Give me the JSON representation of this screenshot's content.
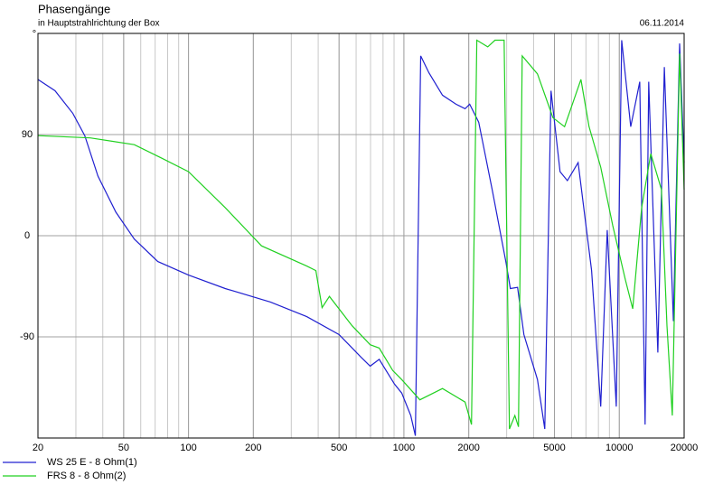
{
  "chart_data": {
    "type": "line",
    "title": "Phasengänge",
    "subtitle": "in Hauptstrahlrichtung der Box",
    "date": "06.11.2014",
    "ylabel": "°",
    "xscale": "log",
    "xlim": [
      20,
      20000
    ],
    "xticks": [
      20,
      50,
      100,
      200,
      500,
      1000,
      2000,
      5000,
      10000,
      20000
    ],
    "ylim": [
      -180,
      180
    ],
    "yticks": [
      -90,
      0,
      90
    ],
    "grid": true,
    "minor_grid": true,
    "legend": "bottom-left",
    "series": [
      {
        "name": "WS 25 E - 8 Ohm(1)",
        "color": "#2020d0",
        "x": [
          20,
          24,
          29,
          33,
          38,
          46,
          56,
          72,
          100,
          148,
          240,
          354,
          500,
          632,
          697,
          768,
          904,
          977,
          1076,
          1130,
          1197,
          1306,
          1510,
          1746,
          1923,
          2020,
          2224,
          2570,
          2972,
          3120,
          3372,
          3608,
          4168,
          4508,
          4820,
          5310,
          5740,
          6440,
          7440,
          8200,
          8790,
          9680,
          10260,
          11300,
          12440,
          13180,
          13700,
          15100,
          16180,
          17820,
          19060,
          20000
        ],
        "values": [
          139,
          129,
          109,
          89,
          53,
          21,
          -3,
          -23,
          -35,
          -47,
          -59,
          -72,
          -88,
          -108,
          -116,
          -110,
          -132,
          -140,
          -160,
          -178,
          160,
          145,
          125,
          117,
          113,
          117,
          101,
          41,
          -23,
          -47,
          -46,
          -88,
          -128,
          -172,
          129,
          57,
          49,
          65,
          -31,
          -152,
          5,
          -152,
          174,
          97,
          137,
          -168,
          137,
          -104,
          150,
          -76,
          171,
          65
        ]
      },
      {
        "name": "FRS 8 - 8 Ohm(2)",
        "color": "#20d020",
        "x": [
          20,
          35,
          56,
          75,
          100,
          148,
          218,
          354,
          390,
          417,
          451,
          574,
          697,
          768,
          888,
          977,
          1186,
          1510,
          1923,
          2060,
          2180,
          2450,
          2648,
          2918,
          3090,
          3274,
          3404,
          3540,
          4168,
          4920,
          5572,
          6634,
          7240,
          8200,
          9320,
          10660,
          11540,
          12700,
          14000,
          15700,
          16640,
          17620,
          19060,
          20000
        ],
        "values": [
          89,
          87,
          81,
          69,
          57,
          25,
          -9,
          -27,
          -31,
          -64,
          -54,
          -80,
          -97,
          -100,
          -120,
          -128,
          -146,
          -136,
          -148,
          -168,
          174,
          168,
          174,
          174,
          -172,
          -160,
          -170,
          160,
          144,
          105,
          97,
          139,
          97,
          61,
          9,
          -39,
          -65,
          25,
          73,
          41,
          -80,
          -160,
          162,
          41
        ]
      }
    ]
  }
}
